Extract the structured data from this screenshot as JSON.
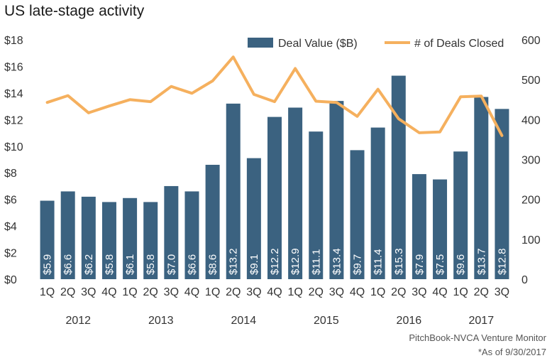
{
  "title": "US late-stage activity",
  "source": "PitchBook-NVCA Venture Monitor",
  "note": "*As of 9/30/2017",
  "colors": {
    "bar": "#3b6280",
    "line": "#f5b05e",
    "bar_label": "#ffffff",
    "axis_text": "#333333"
  },
  "chart_data": {
    "type": "bar",
    "categories": [
      "1Q",
      "2Q",
      "3Q",
      "4Q",
      "1Q",
      "2Q",
      "3Q",
      "4Q",
      "1Q",
      "2Q",
      "3Q",
      "4Q",
      "1Q",
      "2Q",
      "3Q",
      "4Q",
      "1Q",
      "2Q",
      "3Q",
      "4Q",
      "1Q",
      "2Q",
      "3Q"
    ],
    "years": [
      {
        "label": "2012",
        "start": 0,
        "end": 3
      },
      {
        "label": "2013",
        "start": 4,
        "end": 7
      },
      {
        "label": "2014",
        "start": 8,
        "end": 11
      },
      {
        "label": "2015",
        "start": 12,
        "end": 15
      },
      {
        "label": "2016",
        "start": 16,
        "end": 19
      },
      {
        "label": "2017",
        "start": 20,
        "end": 22
      }
    ],
    "series": [
      {
        "name": "Deal Value ($B)",
        "axis": "left",
        "kind": "bar",
        "values": [
          5.9,
          6.6,
          6.2,
          5.8,
          6.1,
          5.8,
          7.0,
          6.6,
          8.6,
          13.2,
          9.1,
          12.2,
          12.9,
          11.1,
          13.4,
          9.7,
          11.4,
          15.3,
          7.9,
          7.5,
          9.6,
          13.7,
          12.8
        ],
        "labels": [
          "$5.9",
          "$6.6",
          "$6.2",
          "$5.8",
          "$6.1",
          "$5.8",
          "$7.0",
          "$6.6",
          "$8.6",
          "$13.2",
          "$9.1",
          "$12.2",
          "$12.9",
          "$11.1",
          "$13.4",
          "$9.7",
          "$11.4",
          "$15.3",
          "$7.9",
          "$7.5",
          "$9.6",
          "$13.7",
          "$12.8"
        ]
      },
      {
        "name": "# of Deals Closed",
        "axis": "right",
        "kind": "line",
        "values": [
          443,
          460,
          417,
          434,
          450,
          445,
          483,
          466,
          497,
          557,
          463,
          445,
          528,
          446,
          443,
          408,
          476,
          402,
          367,
          369,
          457,
          459,
          360
        ]
      }
    ],
    "left_axis": {
      "min": 0,
      "max": 18,
      "step": 2,
      "tick_labels": [
        "$0",
        "$2",
        "$4",
        "$6",
        "$8",
        "$10",
        "$12",
        "$14",
        "$16",
        "$18"
      ]
    },
    "right_axis": {
      "min": 0,
      "max": 600,
      "step": 100,
      "tick_labels": [
        "0",
        "100",
        "200",
        "300",
        "400",
        "500",
        "600"
      ]
    },
    "grid": false,
    "legend_position": "top-right"
  }
}
